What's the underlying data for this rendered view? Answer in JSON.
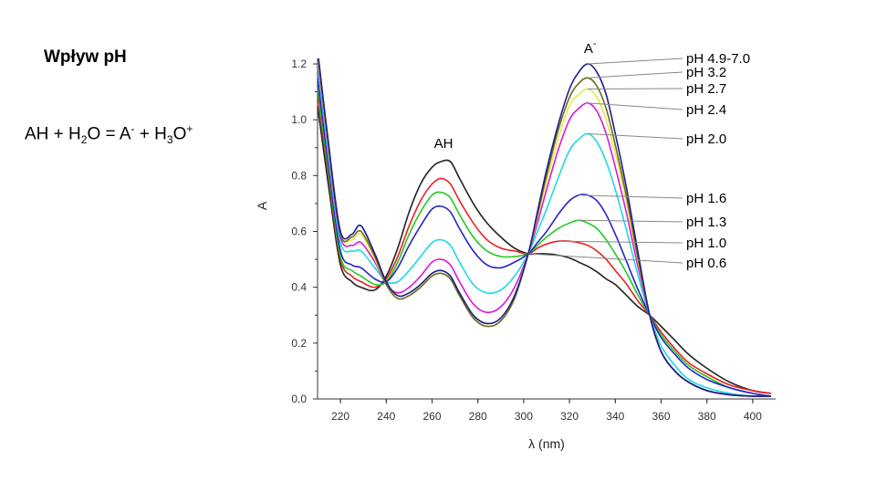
{
  "slide": {
    "title": "Wpływ pH",
    "equation": {
      "p1": "AH + H",
      "s1": "2",
      "p2": "O = A",
      "s2": "-",
      "p3": " + H",
      "s3": "3",
      "p4": "O",
      "s4": "+"
    }
  },
  "chart_data": {
    "type": "line",
    "title": "",
    "xlabel": "λ (nm)",
    "ylabel": "A",
    "xlim": [
      210,
      410
    ],
    "ylim": [
      0.0,
      1.2
    ],
    "xticks": [
      220,
      240,
      260,
      280,
      300,
      320,
      340,
      360,
      380,
      400
    ],
    "yticks": [
      "0.0",
      "0.2",
      "0.4",
      "0.6",
      "0.8",
      "1.0",
      "1.2"
    ],
    "grid": false,
    "annotations": [
      {
        "text": "AH",
        "x": 265,
        "y": 0.9
      },
      {
        "text": "A",
        "sup": "-",
        "x": 329,
        "y": 1.24
      }
    ],
    "x": [
      210,
      215,
      220,
      225,
      229,
      235,
      240,
      245,
      250,
      255,
      260,
      264,
      268,
      272,
      278,
      284,
      290,
      296,
      302,
      306,
      310,
      315,
      320,
      324,
      328,
      332,
      336,
      340,
      345,
      350,
      355,
      360,
      366,
      372,
      380,
      390,
      400,
      408
    ],
    "series": [
      {
        "name": "pH 4.9-7.0",
        "color": "#1c1c8c",
        "values": [
          1.25,
          0.9,
          0.6,
          0.59,
          0.62,
          0.52,
          0.42,
          0.37,
          0.38,
          0.41,
          0.45,
          0.46,
          0.44,
          0.38,
          0.3,
          0.27,
          0.29,
          0.37,
          0.52,
          0.67,
          0.82,
          0.98,
          1.11,
          1.17,
          1.2,
          1.17,
          1.09,
          0.95,
          0.75,
          0.52,
          0.3,
          0.17,
          0.1,
          0.06,
          0.03,
          0.015,
          0.01,
          0.01
        ]
      },
      {
        "name": "pH 3.2",
        "color": "#6b6b1a",
        "values": [
          1.24,
          0.89,
          0.59,
          0.58,
          0.6,
          0.51,
          0.41,
          0.36,
          0.37,
          0.4,
          0.44,
          0.45,
          0.43,
          0.37,
          0.29,
          0.26,
          0.28,
          0.36,
          0.52,
          0.66,
          0.8,
          0.96,
          1.08,
          1.13,
          1.15,
          1.12,
          1.04,
          0.91,
          0.72,
          0.5,
          0.3,
          0.17,
          0.1,
          0.06,
          0.03,
          0.015,
          0.01,
          0.01
        ]
      },
      {
        "name": "pH 2.7",
        "color": "#e8e84a",
        "values": [
          1.23,
          0.88,
          0.59,
          0.57,
          0.59,
          0.5,
          0.41,
          0.37,
          0.38,
          0.41,
          0.45,
          0.46,
          0.44,
          0.38,
          0.3,
          0.27,
          0.29,
          0.37,
          0.52,
          0.65,
          0.78,
          0.93,
          1.05,
          1.09,
          1.11,
          1.08,
          1.0,
          0.88,
          0.7,
          0.49,
          0.3,
          0.17,
          0.1,
          0.06,
          0.03,
          0.015,
          0.01,
          0.01
        ]
      },
      {
        "name": "pH 2.4",
        "color": "#d81ad8",
        "values": [
          1.22,
          0.87,
          0.58,
          0.55,
          0.56,
          0.49,
          0.41,
          0.38,
          0.4,
          0.44,
          0.49,
          0.5,
          0.48,
          0.42,
          0.34,
          0.31,
          0.33,
          0.4,
          0.52,
          0.63,
          0.75,
          0.89,
          1.0,
          1.04,
          1.06,
          1.03,
          0.95,
          0.83,
          0.66,
          0.47,
          0.3,
          0.17,
          0.1,
          0.06,
          0.03,
          0.015,
          0.01,
          0.01
        ]
      },
      {
        "name": "pH 2.0",
        "color": "#20d8e8",
        "values": [
          1.2,
          0.85,
          0.56,
          0.53,
          0.53,
          0.47,
          0.42,
          0.42,
          0.46,
          0.51,
          0.56,
          0.57,
          0.55,
          0.49,
          0.41,
          0.38,
          0.39,
          0.44,
          0.52,
          0.6,
          0.68,
          0.79,
          0.89,
          0.93,
          0.95,
          0.92,
          0.85,
          0.75,
          0.6,
          0.44,
          0.3,
          0.19,
          0.12,
          0.07,
          0.04,
          0.02,
          0.01,
          0.01
        ]
      },
      {
        "name": "pH 1.6",
        "color": "#2525c8",
        "values": [
          1.15,
          0.82,
          0.53,
          0.48,
          0.47,
          0.43,
          0.42,
          0.47,
          0.55,
          0.62,
          0.68,
          0.69,
          0.67,
          0.61,
          0.53,
          0.48,
          0.47,
          0.49,
          0.52,
          0.56,
          0.6,
          0.66,
          0.71,
          0.73,
          0.73,
          0.71,
          0.66,
          0.59,
          0.49,
          0.39,
          0.3,
          0.22,
          0.16,
          0.11,
          0.07,
          0.04,
          0.02,
          0.01
        ]
      },
      {
        "name": "pH 1.3",
        "color": "#22c822",
        "values": [
          1.12,
          0.8,
          0.51,
          0.46,
          0.44,
          0.41,
          0.42,
          0.49,
          0.59,
          0.67,
          0.73,
          0.74,
          0.72,
          0.66,
          0.58,
          0.53,
          0.51,
          0.51,
          0.52,
          0.55,
          0.58,
          0.61,
          0.63,
          0.64,
          0.63,
          0.61,
          0.57,
          0.52,
          0.45,
          0.37,
          0.3,
          0.23,
          0.17,
          0.12,
          0.08,
          0.04,
          0.02,
          0.01
        ]
      },
      {
        "name": "pH 1.0",
        "color": "#e82020",
        "values": [
          1.1,
          0.78,
          0.5,
          0.44,
          0.42,
          0.4,
          0.43,
          0.51,
          0.62,
          0.71,
          0.77,
          0.79,
          0.77,
          0.71,
          0.63,
          0.57,
          0.54,
          0.53,
          0.52,
          0.54,
          0.555,
          0.565,
          0.565,
          0.56,
          0.55,
          0.53,
          0.5,
          0.46,
          0.41,
          0.35,
          0.3,
          0.24,
          0.18,
          0.13,
          0.09,
          0.05,
          0.03,
          0.02
        ]
      },
      {
        "name": "pH 0.6",
        "color": "#222222",
        "values": [
          1.05,
          0.75,
          0.48,
          0.42,
          0.4,
          0.39,
          0.44,
          0.54,
          0.67,
          0.77,
          0.83,
          0.85,
          0.85,
          0.79,
          0.7,
          0.63,
          0.58,
          0.54,
          0.52,
          0.52,
          0.52,
          0.515,
          0.505,
          0.49,
          0.475,
          0.455,
          0.43,
          0.41,
          0.37,
          0.33,
          0.3,
          0.26,
          0.21,
          0.16,
          0.11,
          0.06,
          0.03,
          0.02
        ]
      }
    ]
  }
}
